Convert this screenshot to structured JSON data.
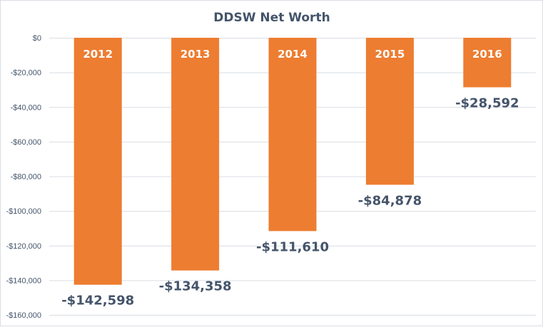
{
  "chart_data": {
    "type": "bar",
    "title": "DDSW Net Worth",
    "xlabel": "",
    "ylabel": "",
    "categories": [
      "2012",
      "2013",
      "2014",
      "2015",
      "2016"
    ],
    "values": [
      -142598,
      -134358,
      -111610,
      -84878,
      -28592
    ],
    "data_labels": [
      "-$142,598",
      "-$134,358",
      "-$111,610",
      "-$84,878",
      "-$28,592"
    ],
    "ylim": [
      -160000,
      0
    ],
    "yticks": [
      0,
      -20000,
      -40000,
      -60000,
      -80000,
      -100000,
      -120000,
      -140000,
      -160000
    ],
    "ytick_labels": [
      "$0",
      "-$20,000",
      "-$40,000",
      "-$60,000",
      "-$80,000",
      "-$100,000",
      "-$120,000",
      "-$140,000",
      "-$160,000"
    ],
    "grid": true,
    "legend": "none",
    "category_labels_position": "inside-bar-top",
    "colors": {
      "bar": "#ed7d31",
      "text": "#44546a",
      "grid": "#d9dde3"
    }
  }
}
